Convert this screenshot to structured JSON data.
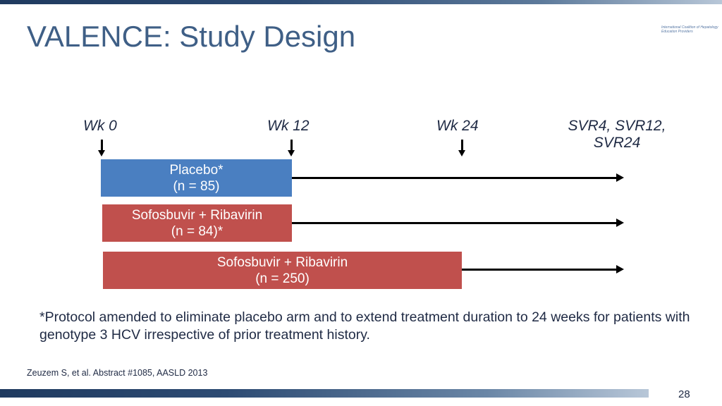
{
  "slide": {
    "title": "VALENCE: Study Design",
    "logo_text": "International Coalition of Hepatology Education Providers",
    "page_number": "28"
  },
  "timeline": {
    "weeks": [
      {
        "label": "Wk 0"
      },
      {
        "label": "Wk 12"
      },
      {
        "label": "Wk 24"
      },
      {
        "label": "SVR4, SVR12, SVR24"
      }
    ]
  },
  "arms": [
    {
      "name": "Placebo*",
      "n": "(n = 85)",
      "color": "#4a7fc1"
    },
    {
      "name": "Sofosbuvir + Ribavirin",
      "n": "(n = 84)*",
      "color": "#c0504d"
    },
    {
      "name": "Sofosbuvir + Ribavirin",
      "n": "(n = 250)",
      "color": "#c0504d"
    }
  ],
  "footnote": "*Protocol amended to eliminate placebo arm and to extend treatment duration to 24 weeks for patients with genotype 3 HCV irrespective of prior treatment history.",
  "citation": "Zeuzem S, et al. Abstract #1085, AASLD 2013"
}
